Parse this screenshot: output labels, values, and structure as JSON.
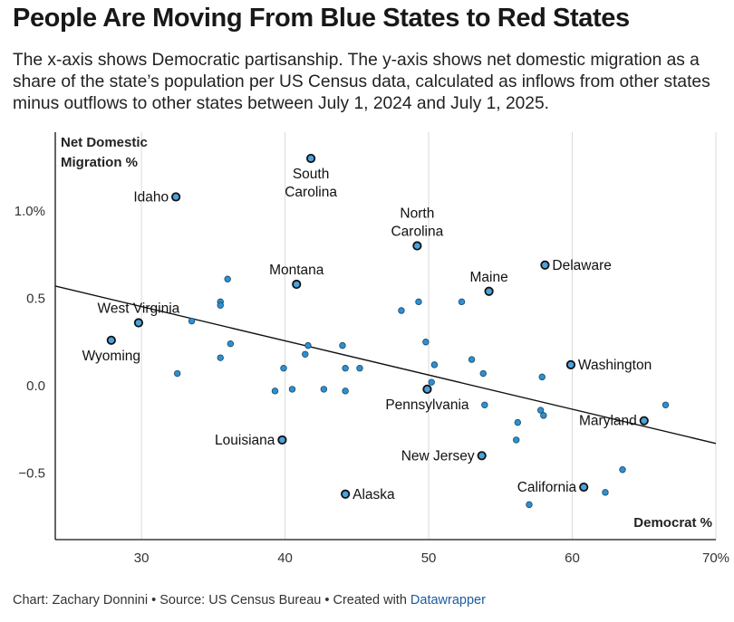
{
  "title": "People Are Moving From Blue States to Red States",
  "subtitle": "The x-axis shows Democratic partisanship. The y-axis shows net domestic migration as a share of the state’s population per US Census data, calculated as inflows from other states minus outflows to other states between July 1, 2024 and July 1, 2025.",
  "footer": {
    "text": "Chart: Zachary Donnini • Source: US Census Bureau • Created with ",
    "link": "Datawrapper"
  },
  "colors": {
    "point": "#2e8fd1",
    "point_stroke": "#1c4a66",
    "highlight": "#4aa3dc",
    "trend": "#111111",
    "grid": "#d9d9d9",
    "axis": "#111111"
  },
  "chart_data": {
    "type": "scatter",
    "title": "People Are Moving From Blue States to Red States",
    "xlabel": "Democrat %",
    "ylabel_lines": [
      "Net Domestic",
      "Migration %"
    ],
    "xlim": [
      24,
      70
    ],
    "ylim": [
      -0.88,
      1.45
    ],
    "x_ticks": [
      30,
      40,
      50,
      60,
      70
    ],
    "x_tick_labels": [
      "30",
      "40",
      "50",
      "60",
      "70%"
    ],
    "y_ticks": [
      1.0,
      0.5,
      0.0,
      -0.5
    ],
    "y_tick_labels": [
      "1.0%",
      "0.5",
      "0.0",
      "−0.5"
    ],
    "grid": "vertical",
    "trendline": {
      "x": [
        24,
        70
      ],
      "y": [
        0.57,
        -0.33
      ]
    },
    "labeled_points": [
      {
        "name": "South Carolina",
        "label_lines": [
          "South",
          "Carolina"
        ],
        "x": 41.8,
        "y": 1.3,
        "anchor": "below"
      },
      {
        "name": "Idaho",
        "label_lines": [
          "Idaho"
        ],
        "x": 32.4,
        "y": 1.08,
        "anchor": "left"
      },
      {
        "name": "North Carolina",
        "label_lines": [
          "North",
          "Carolina"
        ],
        "x": 49.2,
        "y": 0.8,
        "anchor": "above"
      },
      {
        "name": "Delaware",
        "label_lines": [
          "Delaware"
        ],
        "x": 58.1,
        "y": 0.69,
        "anchor": "right"
      },
      {
        "name": "Montana",
        "label_lines": [
          "Montana"
        ],
        "x": 40.8,
        "y": 0.58,
        "anchor": "above"
      },
      {
        "name": "Maine",
        "label_lines": [
          "Maine"
        ],
        "x": 54.2,
        "y": 0.54,
        "anchor": "above"
      },
      {
        "name": "West Virginia",
        "label_lines": [
          "West Virginia"
        ],
        "x": 29.8,
        "y": 0.36,
        "anchor": "above"
      },
      {
        "name": "Wyoming",
        "label_lines": [
          "Wyoming"
        ],
        "x": 27.9,
        "y": 0.26,
        "anchor": "below"
      },
      {
        "name": "Washington",
        "label_lines": [
          "Washington"
        ],
        "x": 59.9,
        "y": 0.12,
        "anchor": "right"
      },
      {
        "name": "Pennsylvania",
        "label_lines": [
          "Pennsylvania"
        ],
        "x": 49.9,
        "y": -0.02,
        "anchor": "below"
      },
      {
        "name": "Maryland",
        "label_lines": [
          "Maryland"
        ],
        "x": 65.0,
        "y": -0.2,
        "anchor": "left"
      },
      {
        "name": "Louisiana",
        "label_lines": [
          "Louisiana"
        ],
        "x": 39.8,
        "y": -0.31,
        "anchor": "left"
      },
      {
        "name": "New Jersey",
        "label_lines": [
          "New Jersey"
        ],
        "x": 53.7,
        "y": -0.4,
        "anchor": "left"
      },
      {
        "name": "Alaska",
        "label_lines": [
          "Alaska"
        ],
        "x": 44.2,
        "y": -0.62,
        "anchor": "right"
      },
      {
        "name": "California",
        "label_lines": [
          "California"
        ],
        "x": 60.8,
        "y": -0.58,
        "anchor": "left"
      }
    ],
    "other_points": [
      {
        "x": 36.0,
        "y": 0.61
      },
      {
        "x": 35.5,
        "y": 0.48
      },
      {
        "x": 35.5,
        "y": 0.46
      },
      {
        "x": 33.5,
        "y": 0.37
      },
      {
        "x": 36.2,
        "y": 0.24
      },
      {
        "x": 35.5,
        "y": 0.16
      },
      {
        "x": 32.5,
        "y": 0.07
      },
      {
        "x": 39.3,
        "y": -0.03
      },
      {
        "x": 39.9,
        "y": 0.1
      },
      {
        "x": 40.5,
        "y": -0.02
      },
      {
        "x": 41.4,
        "y": 0.18
      },
      {
        "x": 41.6,
        "y": 0.23
      },
      {
        "x": 42.7,
        "y": -0.02
      },
      {
        "x": 44.0,
        "y": 0.23
      },
      {
        "x": 44.2,
        "y": 0.1
      },
      {
        "x": 44.2,
        "y": -0.03
      },
      {
        "x": 45.2,
        "y": 0.1
      },
      {
        "x": 48.1,
        "y": 0.43
      },
      {
        "x": 49.3,
        "y": 0.48
      },
      {
        "x": 49.8,
        "y": 0.25
      },
      {
        "x": 50.4,
        "y": 0.12
      },
      {
        "x": 50.2,
        "y": 0.02
      },
      {
        "x": 52.3,
        "y": 0.48
      },
      {
        "x": 53.0,
        "y": 0.15
      },
      {
        "x": 53.8,
        "y": 0.07
      },
      {
        "x": 53.9,
        "y": -0.11
      },
      {
        "x": 56.2,
        "y": -0.21
      },
      {
        "x": 56.1,
        "y": -0.31
      },
      {
        "x": 57.8,
        "y": -0.14
      },
      {
        "x": 57.9,
        "y": 0.05
      },
      {
        "x": 58.0,
        "y": -0.17
      },
      {
        "x": 57.0,
        "y": -0.68
      },
      {
        "x": 62.3,
        "y": -0.61
      },
      {
        "x": 63.5,
        "y": -0.48
      },
      {
        "x": 66.5,
        "y": -0.11
      }
    ]
  }
}
